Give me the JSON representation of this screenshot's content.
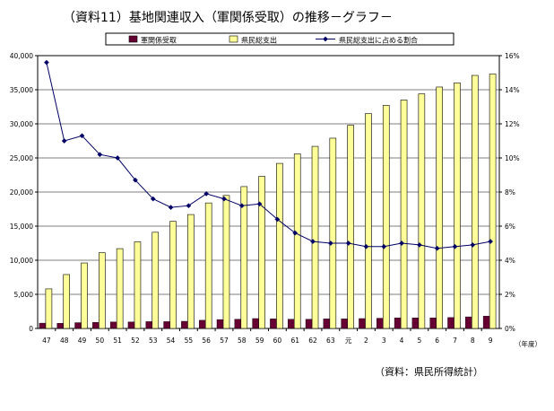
{
  "chart_data": {
    "type": "bar",
    "title": "（資料11）基地関連収入（軍関係受取）の推移－グラフ－",
    "categories": [
      "47",
      "48",
      "49",
      "50",
      "51",
      "52",
      "53",
      "54",
      "55",
      "56",
      "57",
      "58",
      "59",
      "60",
      "61",
      "62",
      "63",
      "元",
      "2",
      "3",
      "4",
      "5",
      "6",
      "7",
      "8",
      "9"
    ],
    "xunit": "（年度）",
    "legend_position": "top",
    "series": [
      {
        "name": "軍関係受取",
        "type": "bar",
        "axis": "left",
        "color": "#660033",
        "values": [
          780,
          750,
          850,
          900,
          950,
          950,
          1000,
          1000,
          1050,
          1200,
          1300,
          1350,
          1450,
          1400,
          1350,
          1350,
          1400,
          1400,
          1450,
          1500,
          1550,
          1550,
          1550,
          1600,
          1700,
          1800
        ]
      },
      {
        "name": "県民総支出",
        "type": "bar",
        "axis": "left",
        "color": "#ffff99",
        "values": [
          5800,
          7900,
          9600,
          11100,
          11700,
          12700,
          14100,
          15700,
          16700,
          18400,
          19500,
          20800,
          22300,
          24200,
          25600,
          26700,
          27900,
          29800,
          31500,
          32700,
          33500,
          34400,
          35400,
          36000,
          37100,
          37300
        ]
      },
      {
        "name": "県民総支出に占める割合",
        "type": "line",
        "axis": "right",
        "color": "#000066",
        "values": [
          15.6,
          11.0,
          11.3,
          10.2,
          10.0,
          8.7,
          7.6,
          7.1,
          7.2,
          7.9,
          7.6,
          7.2,
          7.3,
          6.4,
          5.6,
          5.1,
          5.0,
          5.0,
          4.8,
          4.8,
          5.0,
          4.9,
          4.7,
          4.8,
          4.9,
          5.1
        ]
      }
    ],
    "ylim": [
      0,
      40000
    ],
    "yticks": [
      "0",
      "5,000",
      "10,000",
      "15,000",
      "20,000",
      "25,000",
      "30,000",
      "35,000",
      "40,000"
    ],
    "y2lim": [
      0,
      16
    ],
    "y2ticks": [
      "0%",
      "2%",
      "4%",
      "6%",
      "8%",
      "10%",
      "12%",
      "14%",
      "16%"
    ],
    "note": "（資料：県民所得統計）"
  }
}
